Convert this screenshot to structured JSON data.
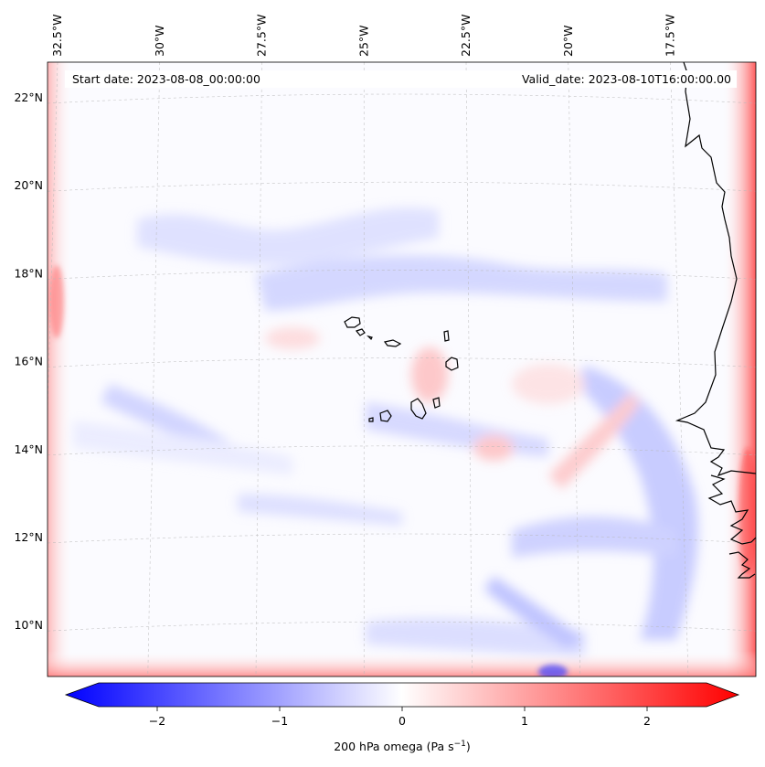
{
  "header": {
    "start_date": "Start date: 2023-08-08_00:00:00",
    "valid_date": "Valid_date: 2023-08-10T16:00:00.00"
  },
  "map": {
    "lon_labels": [
      {
        "lon": -32.5,
        "text": "32.5°W"
      },
      {
        "lon": -30.0,
        "text": "30°W"
      },
      {
        "lon": -27.5,
        "text": "27.5°W"
      },
      {
        "lon": -25.0,
        "text": "25°W"
      },
      {
        "lon": -22.5,
        "text": "22.5°W"
      },
      {
        "lon": -20.0,
        "text": "20°W"
      },
      {
        "lon": -17.5,
        "text": "17.5°W"
      }
    ],
    "lat_labels": [
      {
        "lat": 22,
        "text": "22°N"
      },
      {
        "lat": 20,
        "text": "20°N"
      },
      {
        "lat": 18,
        "text": "18°N"
      },
      {
        "lat": 16,
        "text": "16°N"
      },
      {
        "lat": 14,
        "text": "14°N"
      },
      {
        "lat": 12,
        "text": "12°N"
      },
      {
        "lat": 10,
        "text": "10°N"
      }
    ],
    "features": {
      "coastline": "coastline-west-africa",
      "islands": "cape-verde-islands"
    }
  },
  "colorbar": {
    "label_main": "200 hPa omega (Pa s",
    "label_exp": "−1",
    "label_close": ")",
    "min": -2.6,
    "max": 2.6,
    "ticks": [
      {
        "value": -2,
        "text": "−2"
      },
      {
        "value": -1,
        "text": "−1"
      },
      {
        "value": 0,
        "text": "0"
      },
      {
        "value": 1,
        "text": "1"
      },
      {
        "value": 2,
        "text": "2"
      }
    ],
    "colors": {
      "negative": "#0000ff",
      "zero": "#ffffff",
      "positive": "#ff0000"
    }
  }
}
